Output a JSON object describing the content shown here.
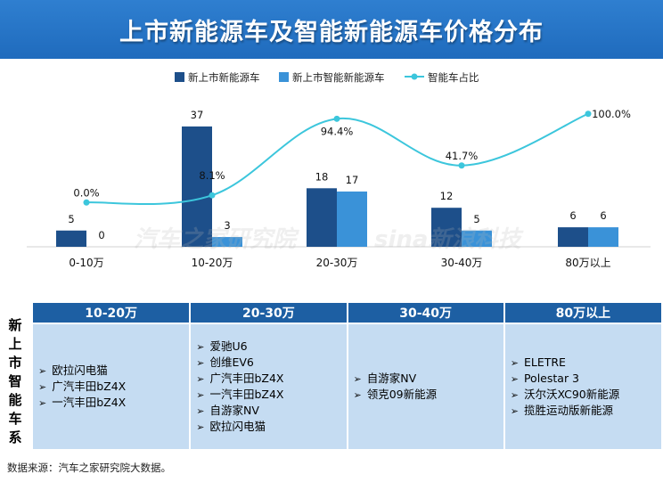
{
  "title": "上市新能源车及智能新能源车价格分布",
  "chart_data": {
    "type": "bar",
    "categories": [
      "0-10万",
      "10-20万",
      "20-30万",
      "30-40万",
      "80万以上"
    ],
    "series": [
      {
        "name": "新上市新能源车",
        "type": "bar",
        "color": "#1d4f8a",
        "values": [
          5,
          37,
          18,
          12,
          6
        ]
      },
      {
        "name": "新上市智能新能源车",
        "type": "bar",
        "color": "#3a92d8",
        "values": [
          0,
          3,
          17,
          5,
          6
        ]
      },
      {
        "name": "智能车占比",
        "type": "line",
        "color": "#3cc6dc",
        "values": [
          0.0,
          8.1,
          94.4,
          41.7,
          100.0
        ],
        "labels": [
          "0.0%",
          "8.1%",
          "94.4%",
          "41.7%",
          "100.0%"
        ]
      }
    ],
    "ylim": [
      0,
      40
    ],
    "y2lim": [
      -50,
      150
    ],
    "legend": "top",
    "grid": false
  },
  "watermarks": [
    "汽车之家研究院",
    "sina新浪科技"
  ],
  "side_label": [
    "新",
    "上",
    "市",
    "智",
    "能",
    "车",
    "系"
  ],
  "table": {
    "headers": [
      "10-20万",
      "20-30万",
      "30-40万",
      "80万以上"
    ],
    "columns": [
      [
        "欧拉闪电猫",
        "广汽丰田bZ4X",
        "一汽丰田bZ4X"
      ],
      [
        "爱驰U6",
        "创维EV6",
        "广汽丰田bZ4X",
        "一汽丰田bZ4X",
        "自游家NV",
        "欧拉闪电猫"
      ],
      [
        "自游家NV",
        "领克09新能源"
      ],
      [
        "ELETRE",
        "Polestar 3",
        "沃尔沃XC90新能源",
        "揽胜运动版新能源"
      ]
    ]
  },
  "source": "数据来源：汽车之家研究院大数据。"
}
